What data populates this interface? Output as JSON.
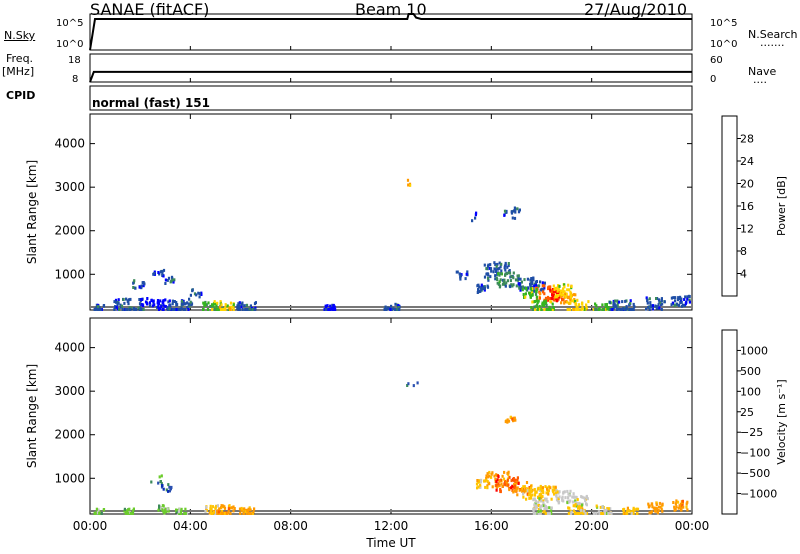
{
  "header": {
    "station": "SANAE (fitACF)",
    "beam": "Beam 10",
    "date": "27/Aug/2010"
  },
  "noise_panel": {
    "left_label": "N.Sky",
    "left_ticks": [
      "10^5",
      "10^0"
    ],
    "right_ticks": [
      "10^5",
      "10^0"
    ],
    "right_label": "N.Search",
    "right_label_dots": "·······"
  },
  "freq_panel": {
    "left_label_line1": "Freq.",
    "left_label_line2": "[MHz]",
    "left_ticks": [
      "18",
      "8"
    ],
    "right_ticks": [
      "60",
      "0"
    ],
    "right_label": "Nave",
    "right_label_dots": "····",
    "cpid_label": "CPID"
  },
  "cpid_text": "normal (fast) 151",
  "time_axis": {
    "tick_labels": [
      "00:00",
      "04:00",
      "08:00",
      "12:00",
      "16:00",
      "20:00",
      "00:00"
    ],
    "title": "Time UT"
  },
  "icons": {
    "noise_trace": "line-trace-icon",
    "scatter_cells": "scatter-cells-icon"
  },
  "chart_data": [
    {
      "type": "line",
      "name": "noise",
      "title": "",
      "xlabel": "Time UT",
      "ylabel": "N.Sky",
      "x": [
        0.0,
        0.2,
        2,
        4,
        6,
        8,
        10,
        12,
        12.65,
        12.7,
        12.9,
        13,
        13.2,
        14,
        16,
        18,
        20,
        22,
        24
      ],
      "series": [
        {
          "values": [
            0,
            4.3,
            4.3,
            4.3,
            4.3,
            4.3,
            4.3,
            4.3,
            4.3,
            5.0,
            5.0,
            4.5,
            4.3,
            4.3,
            4.3,
            4.3,
            4.3,
            4.3,
            4.3
          ]
        }
      ],
      "ylim": [
        0,
        5
      ],
      "xlim": [
        0,
        24
      ]
    },
    {
      "type": "line",
      "name": "frequency",
      "title": "",
      "xlabel": "Time UT",
      "ylabel": "Freq. [MHz]",
      "x": [
        0.0,
        0.15,
        0.5,
        1,
        4,
        8,
        12,
        16,
        20,
        24
      ],
      "series": [
        {
          "values": [
            8,
            11.6,
            11.6,
            11.6,
            11.6,
            11.6,
            11.6,
            11.6,
            11.6,
            11.6
          ]
        }
      ],
      "ylim": [
        8,
        18
      ],
      "xlim": [
        0,
        24
      ]
    },
    {
      "type": "heatmap",
      "name": "power",
      "title": "",
      "xlabel": "Time UT",
      "ylabel": "Slant Range [km]",
      "xlim": [
        0,
        24
      ],
      "ylim": [
        180,
        4680
      ],
      "y_ticks": [
        1000,
        2000,
        3000,
        4000
      ],
      "x_ticks": [
        0,
        4,
        8,
        12,
        16,
        20,
        24
      ],
      "colorbar": {
        "label": "Power [dB]",
        "ticks": [
          "4",
          "8",
          "12",
          "16",
          "20",
          "24",
          "28"
        ],
        "colors": [
          "#0000ff",
          "#1f4ea6",
          "#3c8a5a",
          "#34b51e",
          "#ffd400",
          "#ff9a00",
          "#ff5a00",
          "#ff0000"
        ]
      },
      "points": [
        [
          0.3,
          250,
          1,
          0.3
        ],
        [
          1.5,
          230,
          1,
          0.8
        ],
        [
          2.8,
          300,
          0,
          0.5
        ],
        [
          3.5,
          240,
          1,
          0.6
        ],
        [
          4.8,
          260,
          3,
          0.5
        ],
        [
          5.4,
          260,
          4,
          0.4
        ],
        [
          6.2,
          240,
          1,
          0.5
        ],
        [
          1.9,
          800,
          1,
          0.2
        ],
        [
          2.7,
          1050,
          1,
          0.2
        ],
        [
          3.1,
          900,
          1,
          0.15
        ],
        [
          2.2,
          400,
          0,
          0.2
        ],
        [
          4.2,
          600,
          1,
          0.15
        ],
        [
          3.8,
          380,
          1,
          0.2
        ],
        [
          12.8,
          3150,
          5,
          0.05
        ],
        [
          15.4,
          2350,
          1,
          0.05
        ],
        [
          16.7,
          2400,
          1,
          0.2
        ],
        [
          17.0,
          2500,
          1,
          0.1
        ],
        [
          14.8,
          1000,
          1,
          0.15
        ],
        [
          16.2,
          1100,
          1,
          0.7
        ],
        [
          16.6,
          900,
          2,
          0.6
        ],
        [
          17.3,
          800,
          1,
          0.5
        ],
        [
          15.6,
          700,
          1,
          0.3
        ],
        [
          17.8,
          750,
          1,
          0.4
        ],
        [
          18.2,
          600,
          6,
          0.6
        ],
        [
          18.5,
          550,
          7,
          0.4
        ],
        [
          19.0,
          480,
          5,
          0.4
        ],
        [
          18.8,
          650,
          4,
          0.5
        ],
        [
          17.5,
          600,
          3,
          0.4
        ],
        [
          18.0,
          250,
          3,
          0.6
        ],
        [
          19.4,
          260,
          4,
          0.6
        ],
        [
          20.4,
          250,
          3,
          0.5
        ],
        [
          21.2,
          240,
          1,
          0.7
        ],
        [
          22.5,
          350,
          1,
          0.5
        ],
        [
          23.5,
          400,
          1,
          0.5
        ],
        [
          12.0,
          240,
          1,
          0.4
        ],
        [
          9.5,
          240,
          0,
          0.3
        ]
      ]
    },
    {
      "type": "heatmap",
      "name": "velocity",
      "title": "",
      "xlabel": "Time UT",
      "ylabel": "Slant Range [km]",
      "xlim": [
        0,
        24
      ],
      "ylim": [
        180,
        4680
      ],
      "y_ticks": [
        1000,
        2000,
        3000,
        4000
      ],
      "x_ticks": [
        0,
        4,
        8,
        12,
        16,
        20,
        24
      ],
      "colorbar": {
        "label": "Velocity [m s⁻¹]",
        "ticks": [
          "1000",
          "500",
          "100",
          "25",
          "−25",
          "−100",
          "−500",
          "−1000"
        ],
        "colors": [
          "#0a2db4",
          "#2a50b0",
          "#3c8a5a",
          "#6ccc2c",
          "#c8c8c8",
          "#ffc400",
          "#ff9a00",
          "#ff5a00",
          "#ff0000"
        ]
      },
      "points": [
        [
          0.3,
          250,
          3,
          0.2
        ],
        [
          1.5,
          240,
          3,
          0.3
        ],
        [
          2.9,
          320,
          3,
          0.3
        ],
        [
          3.6,
          240,
          3,
          0.3
        ],
        [
          4.9,
          260,
          5,
          0.5
        ],
        [
          5.4,
          260,
          6,
          0.5
        ],
        [
          6.2,
          240,
          6,
          0.4
        ],
        [
          2.6,
          1000,
          2,
          0.1
        ],
        [
          3.0,
          800,
          1,
          0.15
        ],
        [
          12.8,
          3150,
          1,
          0.05
        ],
        [
          16.7,
          2400,
          6,
          0.2
        ],
        [
          16.2,
          1000,
          6,
          0.6
        ],
        [
          16.6,
          900,
          7,
          0.6
        ],
        [
          17.2,
          800,
          6,
          0.5
        ],
        [
          15.6,
          900,
          5,
          0.3
        ],
        [
          17.6,
          700,
          5,
          0.5
        ],
        [
          18.2,
          700,
          5,
          0.5
        ],
        [
          18.9,
          600,
          4,
          0.5
        ],
        [
          19.5,
          500,
          4,
          0.4
        ],
        [
          17.9,
          450,
          4,
          0.4
        ],
        [
          18.0,
          250,
          4,
          0.5
        ],
        [
          19.4,
          260,
          5,
          0.5
        ],
        [
          20.4,
          250,
          4,
          0.5
        ],
        [
          21.5,
          240,
          5,
          0.4
        ],
        [
          22.5,
          350,
          6,
          0.4
        ],
        [
          23.5,
          400,
          6,
          0.4
        ]
      ]
    }
  ]
}
